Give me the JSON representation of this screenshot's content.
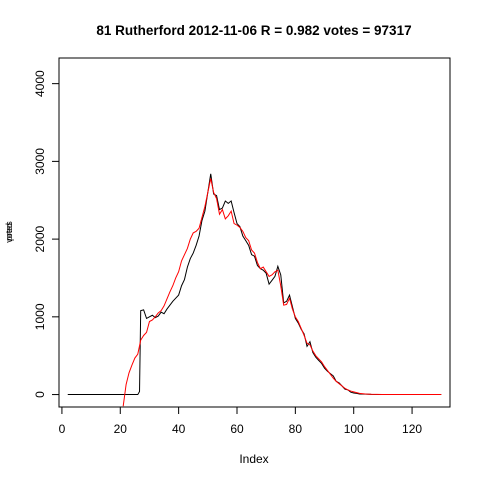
{
  "chart_data": {
    "type": "line",
    "title": "81 Rutherford 2012-11-06 R = 0.982 votes = 97317",
    "xlabel": "Index",
    "ylabel_overlapping": [
      "votes",
      "pred"
    ],
    "xlim": [
      -1,
      133
    ],
    "ylim": [
      -160,
      4330
    ],
    "x_ticks": [
      0,
      20,
      40,
      60,
      80,
      100,
      120
    ],
    "y_ticks": [
      0,
      1000,
      2000,
      3000,
      4000
    ],
    "grid": false,
    "legend": "none",
    "series": [
      {
        "color": "#000000",
        "points": [
          [
            2,
            0
          ],
          [
            10,
            0
          ],
          [
            20,
            0
          ],
          [
            26,
            0
          ],
          [
            26.6,
            40
          ],
          [
            27,
            1080
          ],
          [
            28,
            1090
          ],
          [
            29,
            980
          ],
          [
            30,
            1000
          ],
          [
            31,
            1020
          ],
          [
            32,
            990
          ],
          [
            33,
            1010
          ],
          [
            34,
            1060
          ],
          [
            35,
            1040
          ],
          [
            36,
            1100
          ],
          [
            37,
            1150
          ],
          [
            38,
            1200
          ],
          [
            39,
            1240
          ],
          [
            40,
            1280
          ],
          [
            41,
            1400
          ],
          [
            42,
            1480
          ],
          [
            43,
            1640
          ],
          [
            44,
            1750
          ],
          [
            45,
            1820
          ],
          [
            46,
            1920
          ],
          [
            47,
            2040
          ],
          [
            48,
            2240
          ],
          [
            49,
            2360
          ],
          [
            50,
            2600
          ],
          [
            51,
            2840
          ],
          [
            52,
            2580
          ],
          [
            53,
            2560
          ],
          [
            54,
            2380
          ],
          [
            55,
            2400
          ],
          [
            56,
            2490
          ],
          [
            57,
            2460
          ],
          [
            58,
            2490
          ],
          [
            59,
            2340
          ],
          [
            60,
            2200
          ],
          [
            61,
            2160
          ],
          [
            62,
            2040
          ],
          [
            63,
            1980
          ],
          [
            64,
            1920
          ],
          [
            65,
            1800
          ],
          [
            66,
            1780
          ],
          [
            67,
            1660
          ],
          [
            68,
            1620
          ],
          [
            69,
            1600
          ],
          [
            70,
            1560
          ],
          [
            71,
            1420
          ],
          [
            72,
            1470
          ],
          [
            73,
            1520
          ],
          [
            74,
            1650
          ],
          [
            75,
            1540
          ],
          [
            76,
            1180
          ],
          [
            77,
            1200
          ],
          [
            78,
            1280
          ],
          [
            79,
            1130
          ],
          [
            80,
            980
          ],
          [
            81,
            920
          ],
          [
            82,
            840
          ],
          [
            83,
            780
          ],
          [
            84,
            620
          ],
          [
            85,
            680
          ],
          [
            86,
            540
          ],
          [
            87,
            480
          ],
          [
            88,
            440
          ],
          [
            89,
            400
          ],
          [
            90,
            340
          ],
          [
            91,
            300
          ],
          [
            92,
            270
          ],
          [
            93,
            240
          ],
          [
            94,
            170
          ],
          [
            95,
            150
          ],
          [
            96,
            110
          ],
          [
            97,
            70
          ],
          [
            98,
            60
          ],
          [
            99,
            30
          ],
          [
            100,
            20
          ],
          [
            101,
            15
          ],
          [
            102,
            8
          ],
          [
            104,
            5
          ],
          [
            106,
            2
          ],
          [
            110,
            0
          ],
          [
            120,
            0
          ],
          [
            130,
            0
          ]
        ]
      },
      {
        "color": "#ff0000",
        "points": [
          [
            21,
            -150
          ],
          [
            22,
            130
          ],
          [
            23,
            280
          ],
          [
            24,
            380
          ],
          [
            25,
            470
          ],
          [
            26,
            520
          ],
          [
            27,
            700
          ],
          [
            28,
            760
          ],
          [
            29,
            800
          ],
          [
            30,
            940
          ],
          [
            31,
            960
          ],
          [
            32,
            1000
          ],
          [
            33,
            1050
          ],
          [
            34,
            1080
          ],
          [
            35,
            1140
          ],
          [
            36,
            1230
          ],
          [
            37,
            1320
          ],
          [
            38,
            1400
          ],
          [
            39,
            1500
          ],
          [
            40,
            1580
          ],
          [
            41,
            1720
          ],
          [
            42,
            1800
          ],
          [
            43,
            1880
          ],
          [
            44,
            2000
          ],
          [
            45,
            2080
          ],
          [
            46,
            2100
          ],
          [
            47,
            2140
          ],
          [
            48,
            2280
          ],
          [
            49,
            2420
          ],
          [
            50,
            2600
          ],
          [
            51,
            2780
          ],
          [
            52,
            2600
          ],
          [
            53,
            2520
          ],
          [
            54,
            2320
          ],
          [
            55,
            2380
          ],
          [
            56,
            2260
          ],
          [
            57,
            2300
          ],
          [
            58,
            2360
          ],
          [
            59,
            2200
          ],
          [
            60,
            2180
          ],
          [
            61,
            2150
          ],
          [
            62,
            2100
          ],
          [
            63,
            2020
          ],
          [
            64,
            1980
          ],
          [
            65,
            1860
          ],
          [
            66,
            1820
          ],
          [
            67,
            1700
          ],
          [
            68,
            1620
          ],
          [
            69,
            1640
          ],
          [
            70,
            1580
          ],
          [
            71,
            1520
          ],
          [
            72,
            1540
          ],
          [
            73,
            1580
          ],
          [
            74,
            1600
          ],
          [
            75,
            1400
          ],
          [
            76,
            1150
          ],
          [
            77,
            1160
          ],
          [
            78,
            1240
          ],
          [
            79,
            1100
          ],
          [
            80,
            1000
          ],
          [
            81,
            940
          ],
          [
            82,
            850
          ],
          [
            83,
            760
          ],
          [
            84,
            660
          ],
          [
            85,
            640
          ],
          [
            86,
            560
          ],
          [
            87,
            500
          ],
          [
            88,
            460
          ],
          [
            89,
            420
          ],
          [
            90,
            360
          ],
          [
            91,
            310
          ],
          [
            92,
            260
          ],
          [
            93,
            210
          ],
          [
            94,
            170
          ],
          [
            95,
            140
          ],
          [
            96,
            110
          ],
          [
            97,
            80
          ],
          [
            98,
            60
          ],
          [
            99,
            45
          ],
          [
            100,
            35
          ],
          [
            101,
            25
          ],
          [
            102,
            15
          ],
          [
            104,
            8
          ],
          [
            106,
            4
          ],
          [
            108,
            2
          ],
          [
            110,
            1
          ],
          [
            120,
            0
          ],
          [
            130,
            0
          ]
        ]
      }
    ]
  }
}
